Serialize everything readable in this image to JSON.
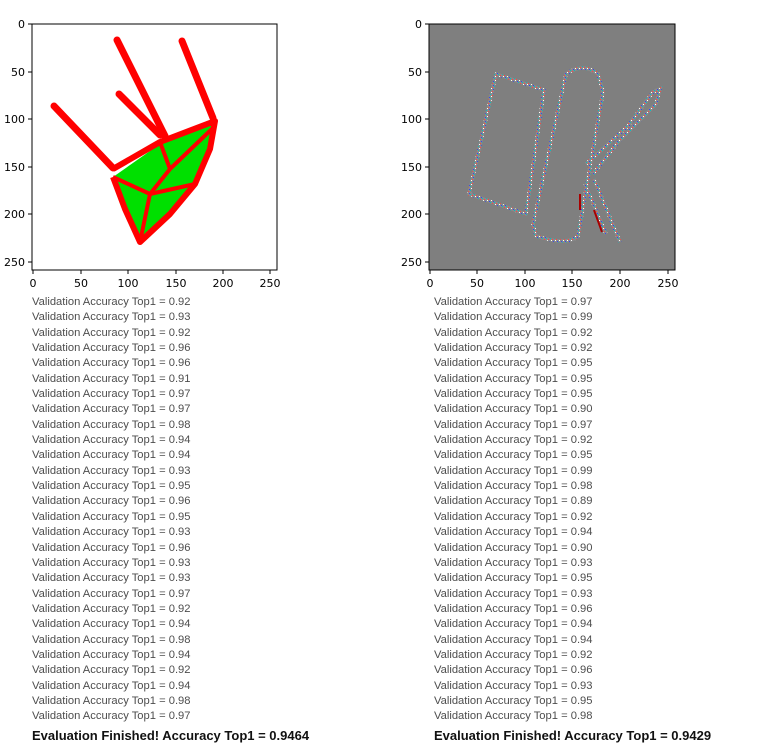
{
  "panels": [
    {
      "image_name": "chair sketch (input image)",
      "axis": {
        "y_ticks": [
          "0",
          "50",
          "100",
          "150",
          "200",
          "250"
        ],
        "x_ticks": [
          "0",
          "50",
          "100",
          "150",
          "200",
          "250"
        ]
      },
      "log_prefix": "Validation Accuracy Top1 = ",
      "accuracies": [
        "0.92",
        "0.93",
        "0.92",
        "0.96",
        "0.96",
        "0.91",
        "0.97",
        "0.97",
        "0.98",
        "0.94",
        "0.94",
        "0.93",
        "0.95",
        "0.96",
        "0.95",
        "0.93",
        "0.96",
        "0.93",
        "0.93",
        "0.97",
        "0.92",
        "0.94",
        "0.98",
        "0.94",
        "0.92",
        "0.94",
        "0.98",
        "0.97"
      ],
      "final": "Evaluation Finished! Accuracy Top1 = 0.9464"
    },
    {
      "image_name": "perturbed knife sketch (gray noise image)",
      "axis": {
        "y_ticks": [
          "0",
          "50",
          "100",
          "150",
          "200",
          "250"
        ],
        "x_ticks": [
          "0",
          "50",
          "100",
          "150",
          "200",
          "250"
        ]
      },
      "log_prefix": "Validation Accuracy Top1 = ",
      "accuracies": [
        "0.97",
        "0.99",
        "0.92",
        "0.92",
        "0.95",
        "0.95",
        "0.95",
        "0.90",
        "0.97",
        "0.92",
        "0.95",
        "0.99",
        "0.98",
        "0.89",
        "0.92",
        "0.94",
        "0.90",
        "0.93",
        "0.95",
        "0.93",
        "0.96",
        "0.94",
        "0.94",
        "0.92",
        "0.96",
        "0.93",
        "0.95",
        "0.98"
      ],
      "final": "Evaluation Finished! Accuracy Top1 = 0.9429"
    }
  ],
  "colors": {
    "chair_line": "#ff0000",
    "chair_fill": "#00e000",
    "noise_bg": "#7f7f7f"
  }
}
